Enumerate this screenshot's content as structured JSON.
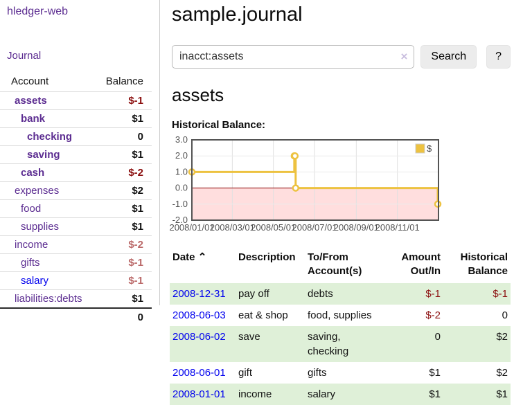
{
  "colors": {
    "accent_purple": "#5c2d91",
    "link_blue": "#0000ee",
    "negative_red": "#8b0f0f",
    "dim_negative": "#bb6a6a",
    "row_stripe_green": "#dff0d8",
    "series_gold": "#edc240",
    "negative_region_pink": "#ffdede",
    "zero_line_red": "#8b0000",
    "chart_frame": "#545454"
  },
  "sidebar": {
    "brand": "hledger-web",
    "journal_link": "Journal",
    "accounts_header": {
      "account": "Account",
      "balance": "Balance"
    },
    "accounts": [
      {
        "name": "assets",
        "level": 0,
        "balance": "$-1",
        "bold": true,
        "negative": true,
        "dim": false,
        "unvisited": false
      },
      {
        "name": "bank",
        "level": 1,
        "balance": "$1",
        "bold": true,
        "negative": false,
        "dim": false,
        "unvisited": false
      },
      {
        "name": "checking",
        "level": 2,
        "balance": "0",
        "bold": true,
        "negative": false,
        "dim": false,
        "unvisited": false
      },
      {
        "name": "saving",
        "level": 2,
        "balance": "$1",
        "bold": true,
        "negative": false,
        "dim": false,
        "unvisited": false
      },
      {
        "name": "cash",
        "level": 1,
        "balance": "$-2",
        "bold": true,
        "negative": true,
        "dim": false,
        "unvisited": false
      },
      {
        "name": "expenses",
        "level": 0,
        "balance": "$2",
        "bold": false,
        "negative": false,
        "dim": false,
        "unvisited": false
      },
      {
        "name": "food",
        "level": 1,
        "balance": "$1",
        "bold": false,
        "negative": false,
        "dim": false,
        "unvisited": false
      },
      {
        "name": "supplies",
        "level": 1,
        "balance": "$1",
        "bold": false,
        "negative": false,
        "dim": false,
        "unvisited": false
      },
      {
        "name": "income",
        "level": 0,
        "balance": "$-2",
        "bold": false,
        "negative": true,
        "dim": true,
        "unvisited": false
      },
      {
        "name": "gifts",
        "level": 1,
        "balance": "$-1",
        "bold": false,
        "negative": true,
        "dim": true,
        "unvisited": false
      },
      {
        "name": "salary",
        "level": 1,
        "balance": "$-1",
        "bold": false,
        "negative": true,
        "dim": true,
        "unvisited": true
      },
      {
        "name": "liabilities:debts",
        "level": 0,
        "balance": "$1",
        "bold": false,
        "negative": false,
        "dim": false,
        "unvisited": false
      }
    ],
    "total": "0"
  },
  "header": {
    "title": "sample.journal"
  },
  "search": {
    "query": "inacct:assets",
    "clear_icon": "×",
    "button": "Search",
    "help_button": "?"
  },
  "account_page": {
    "heading": "assets",
    "chart_title": "Historical Balance:"
  },
  "chart_data": {
    "type": "line",
    "step": true,
    "title": "Historical Balance",
    "legend": {
      "label": "$",
      "position": "top-right"
    },
    "ylim": [
      -2,
      3
    ],
    "yticks": [
      "3.0",
      "2.0",
      "1.0",
      "0.0",
      "-1.0",
      "-2.0"
    ],
    "xticks": [
      "2008/01/01",
      "2008/03/01",
      "2008/05/01",
      "2008/07/01",
      "2008/09/01",
      "2008/11/01"
    ],
    "xrange": [
      "2008-01-01",
      "2009-01-01"
    ],
    "series": [
      {
        "name": "$",
        "color": "#edc240",
        "points": [
          [
            "2008-01-01",
            1
          ],
          [
            "2008-06-01",
            2
          ],
          [
            "2008-06-02",
            2
          ],
          [
            "2008-06-03",
            0
          ],
          [
            "2008-12-31",
            -1
          ]
        ]
      }
    ],
    "grid": true,
    "negative_region": true
  },
  "transactions": {
    "columns": [
      {
        "label": "Date",
        "align": "left"
      },
      {
        "label": "Description",
        "align": "left"
      },
      {
        "label": "To/From Account(s)",
        "align": "left"
      },
      {
        "label": "Amount Out/In",
        "align": "right"
      },
      {
        "label": "Historical Balance",
        "align": "right"
      }
    ],
    "sort_icon": "⌃",
    "rows": [
      {
        "date": "2008-12-31",
        "description": "pay off",
        "accounts": "debts",
        "amount": "$-1",
        "amount_negative": true,
        "balance": "$-1",
        "balance_negative": true
      },
      {
        "date": "2008-06-03",
        "description": "eat & shop",
        "accounts": "food, supplies",
        "amount": "$-2",
        "amount_negative": true,
        "balance": "0",
        "balance_negative": false
      },
      {
        "date": "2008-06-02",
        "description": "save",
        "accounts": "saving, checking",
        "amount": "0",
        "amount_negative": false,
        "balance": "$2",
        "balance_negative": false
      },
      {
        "date": "2008-06-01",
        "description": "gift",
        "accounts": "gifts",
        "amount": "$1",
        "amount_negative": false,
        "balance": "$2",
        "balance_negative": false
      },
      {
        "date": "2008-01-01",
        "description": "income",
        "accounts": "salary",
        "amount": "$1",
        "amount_negative": false,
        "balance": "$1",
        "balance_negative": false
      }
    ]
  }
}
